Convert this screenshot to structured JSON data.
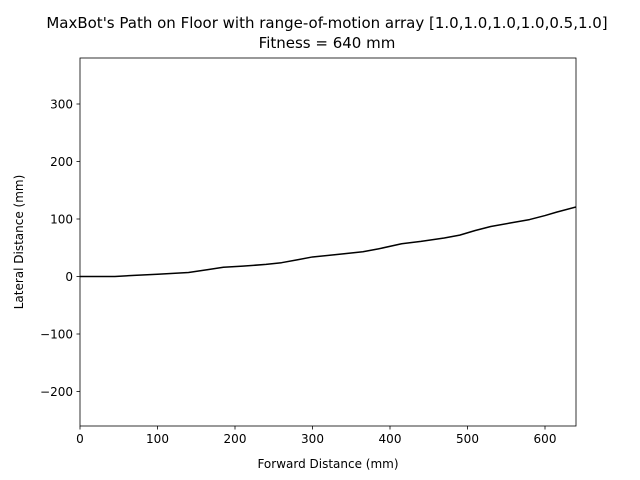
{
  "chart_data": {
    "type": "line",
    "title": "MaxBot's Path on Floor with range-of-motion array [1.0,1.0,1.0,1.0,0.5,1.0]",
    "subtitle": "Fitness = 640 mm",
    "xlabel": "Forward Distance (mm)",
    "ylabel": "Lateral Distance (mm)",
    "xlim": [
      0,
      640
    ],
    "ylim": [
      -260,
      380
    ],
    "xticks": [
      0,
      100,
      200,
      300,
      400,
      500,
      600
    ],
    "yticks": [
      -200,
      -100,
      0,
      100,
      200,
      300
    ],
    "xtick_labels": [
      "0",
      "100",
      "200",
      "300",
      "400",
      "500",
      "600"
    ],
    "ytick_labels": [
      "−200",
      "−100",
      "0",
      "100",
      "200",
      "300"
    ],
    "grid": false,
    "series": [
      {
        "color": "#000000",
        "x": [
          0,
          45,
          70,
          100,
          140,
          165,
          185,
          210,
          240,
          260,
          280,
          300,
          330,
          365,
          385,
          415,
          440,
          470,
          490,
          510,
          530,
          555,
          580,
          600,
          615,
          640
        ],
        "y": [
          0,
          0,
          2,
          4,
          7,
          12,
          16,
          18,
          21,
          24,
          29,
          34,
          38,
          43,
          48,
          57,
          61,
          67,
          72,
          80,
          87,
          93,
          99,
          106,
          112,
          121
        ]
      }
    ]
  }
}
